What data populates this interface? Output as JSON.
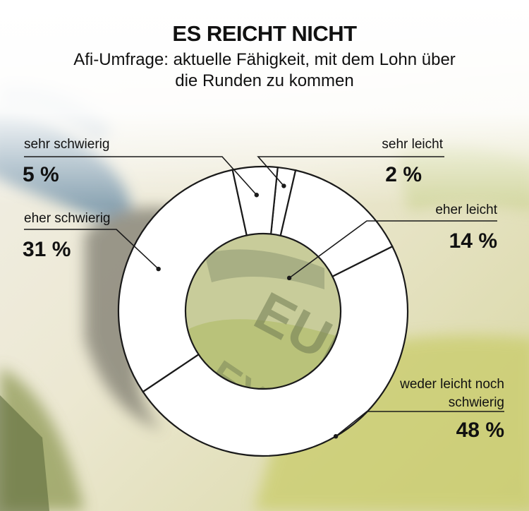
{
  "title": "ES REICHT NICHT",
  "subtitle": "Afi-Umfrage: aktuelle Fähigkeit, mit dem Lohn über die Runden zu kommen",
  "colors": {
    "ring": "#ffffff",
    "stroke": "#1a1a1a",
    "text": "#111111"
  },
  "chart_data": {
    "type": "pie",
    "title": "ES REICHT NICHT",
    "subtitle": "Afi-Umfrage: aktuelle Fähigkeit, mit dem Lohn über die Runden zu kommen",
    "slices": [
      {
        "label": "sehr leicht",
        "value": 2,
        "value_label": "2 %"
      },
      {
        "label": "eher leicht",
        "value": 14,
        "value_label": "14 %"
      },
      {
        "label": "weder leicht noch schwierig",
        "value": 48,
        "value_label": "48 %"
      },
      {
        "label": "eher schwierig",
        "value": 31,
        "value_label": "31 %"
      },
      {
        "label": "sehr schwierig",
        "value": 5,
        "value_label": "5 %"
      }
    ]
  }
}
